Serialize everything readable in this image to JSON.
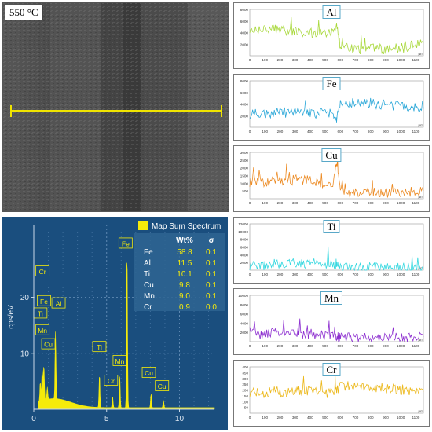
{
  "sem_image": {
    "temperature_label": "550 °C"
  },
  "chart_data": [
    {
      "type": "bar",
      "title": "",
      "legend": "Map Sum Spectrum",
      "ylabel": "cps/eV",
      "xlabel": "",
      "xlim": [
        0,
        12.4
      ],
      "ylim": [
        0,
        33
      ],
      "x_ticks": [
        0,
        5,
        10
      ],
      "y_ticks": [
        10,
        20
      ],
      "peak_labels": [
        "Cr",
        "Fe",
        "Ti",
        "Mn",
        "Al",
        "Cu",
        "Ti",
        "Cr",
        "Mn",
        "Fe",
        "Cu",
        "Cu"
      ],
      "peak_positions_keV": [
        0.57,
        0.7,
        0.45,
        0.64,
        1.49,
        0.93,
        4.51,
        5.41,
        5.9,
        6.4,
        8.05,
        8.9
      ],
      "peak_heights": [
        5.5,
        5.7,
        3.5,
        2.5,
        12.0,
        2.2,
        6.0,
        2.0,
        5.8,
        28.5,
        2.5,
        1.3
      ],
      "table": {
        "headers": [
          "",
          "Wt%",
          "σ"
        ],
        "rows": [
          [
            "Fe",
            "58.8",
            "0.1"
          ],
          [
            "Al",
            "11.5",
            "0.1"
          ],
          [
            "Ti",
            "10.1",
            "0.1"
          ],
          [
            "Cu",
            "9.8",
            "0.1"
          ],
          [
            "Mn",
            "9.0",
            "0.1"
          ],
          [
            "Cr",
            "0.9",
            "0.0"
          ]
        ]
      },
      "color": "#f5eb0a"
    },
    {
      "type": "line",
      "element": "Al",
      "color": "#a8d83a",
      "x_unit": "µm",
      "ylim": [
        0,
        8000
      ],
      "y_ticks": [
        2000,
        4000,
        6000,
        8000
      ],
      "x_ticks": [
        0,
        100,
        200,
        300,
        400,
        500,
        600,
        700,
        800,
        900,
        1000,
        1100
      ],
      "xlim": [
        0,
        1150
      ],
      "x": [
        0,
        50,
        100,
        150,
        200,
        250,
        300,
        350,
        400,
        450,
        500,
        550,
        575,
        600,
        650,
        700,
        750,
        800,
        850,
        900,
        950,
        1000,
        1050,
        1100,
        1150
      ],
      "y": [
        4800,
        4600,
        4400,
        4700,
        4500,
        4200,
        4300,
        4000,
        3900,
        3800,
        3700,
        3900,
        5500,
        1200,
        1300,
        1200,
        1100,
        1300,
        1200,
        1100,
        1200,
        1300,
        1600,
        2000,
        2200
      ]
    },
    {
      "type": "line",
      "element": "Fe",
      "color": "#2aa7d8",
      "x_unit": "µm",
      "ylim": [
        0,
        8000
      ],
      "y_ticks": [
        2000,
        4000,
        6000,
        8000
      ],
      "x_ticks": [
        0,
        100,
        200,
        300,
        400,
        500,
        600,
        700,
        800,
        900,
        1000,
        1100
      ],
      "xlim": [
        0,
        1150
      ],
      "x": [
        0,
        50,
        100,
        150,
        200,
        250,
        300,
        350,
        400,
        450,
        500,
        550,
        575,
        600,
        650,
        700,
        750,
        800,
        850,
        900,
        950,
        1000,
        1050,
        1100,
        1150
      ],
      "y": [
        2300,
        2400,
        2200,
        2600,
        2500,
        2400,
        2700,
        2500,
        2600,
        2400,
        2300,
        2500,
        1500,
        4000,
        4300,
        4200,
        4100,
        4200,
        3900,
        3800,
        3700,
        3900,
        3600,
        3300,
        3200
      ]
    },
    {
      "type": "line",
      "element": "Cu",
      "color": "#ec8a22",
      "x_unit": "µm",
      "ylim": [
        0,
        3000
      ],
      "y_ticks": [
        500,
        1000,
        1500,
        2000,
        2500,
        3000
      ],
      "x_ticks": [
        0,
        100,
        200,
        300,
        400,
        500,
        600,
        700,
        800,
        900,
        1000,
        1100
      ],
      "xlim": [
        0,
        1150
      ],
      "x": [
        0,
        50,
        100,
        150,
        200,
        250,
        300,
        350,
        400,
        450,
        500,
        550,
        575,
        600,
        650,
        700,
        750,
        800,
        850,
        900,
        950,
        1000,
        1050,
        1100,
        1150
      ],
      "y": [
        1100,
        1200,
        1000,
        1300,
        1200,
        1100,
        1250,
        1150,
        1200,
        1050,
        1000,
        1100,
        2200,
        400,
        350,
        380,
        360,
        400,
        350,
        370,
        390,
        420,
        450,
        500,
        520
      ]
    },
    {
      "type": "line",
      "element": "Ti",
      "color": "#36d8e0",
      "x_unit": "µm",
      "ylim": [
        0,
        12000
      ],
      "y_ticks": [
        2000,
        4000,
        6000,
        8000,
        10000,
        12000
      ],
      "x_ticks": [
        0,
        100,
        200,
        300,
        400,
        500,
        600,
        700,
        800,
        900,
        1000,
        1100
      ],
      "xlim": [
        0,
        1150
      ],
      "x": [
        0,
        50,
        100,
        150,
        200,
        250,
        300,
        350,
        400,
        450,
        500,
        550,
        575,
        600,
        650,
        700,
        750,
        800,
        850,
        900,
        950,
        1000,
        1050,
        1100,
        1150
      ],
      "y": [
        1200,
        1400,
        1100,
        1600,
        1500,
        1400,
        1800,
        1600,
        1900,
        1500,
        1300,
        1600,
        1000,
        800,
        700,
        650,
        600,
        700,
        650,
        600,
        620,
        700,
        650,
        600,
        640
      ]
    },
    {
      "type": "line",
      "element": "Mn",
      "color": "#8d2fd0",
      "x_unit": "µm",
      "ylim": [
        0,
        10000
      ],
      "y_ticks": [
        2000,
        4000,
        6000,
        8000,
        10000
      ],
      "x_ticks": [
        0,
        100,
        200,
        300,
        400,
        500,
        600,
        700,
        800,
        900,
        1000,
        1100
      ],
      "xlim": [
        0,
        1150
      ],
      "x": [
        0,
        50,
        100,
        150,
        200,
        250,
        300,
        350,
        400,
        450,
        500,
        550,
        575,
        600,
        650,
        700,
        750,
        800,
        850,
        900,
        950,
        1000,
        1050,
        1100,
        1150
      ],
      "y": [
        1500,
        1700,
        1400,
        1900,
        1800,
        1600,
        2000,
        1700,
        1800,
        1600,
        1500,
        1700,
        1300,
        900,
        850,
        800,
        780,
        820,
        800,
        790,
        810,
        850,
        900,
        1000,
        1100
      ]
    },
    {
      "type": "line",
      "element": "Cr",
      "color": "#ecb81a",
      "x_unit": "µm",
      "ylim": [
        0,
        400
      ],
      "y_ticks": [
        50,
        100,
        150,
        200,
        250,
        300,
        350,
        400
      ],
      "x_ticks": [
        0,
        100,
        200,
        300,
        400,
        500,
        600,
        700,
        800,
        900,
        1000,
        1100
      ],
      "xlim": [
        0,
        1150
      ],
      "x": [
        0,
        50,
        100,
        150,
        200,
        250,
        300,
        350,
        400,
        450,
        500,
        550,
        575,
        600,
        650,
        700,
        750,
        800,
        850,
        900,
        950,
        1000,
        1050,
        1100,
        1150
      ],
      "y": [
        180,
        190,
        170,
        200,
        185,
        175,
        195,
        180,
        190,
        175,
        170,
        185,
        210,
        230,
        240,
        235,
        225,
        230,
        220,
        215,
        210,
        205,
        200,
        190,
        185
      ]
    }
  ]
}
